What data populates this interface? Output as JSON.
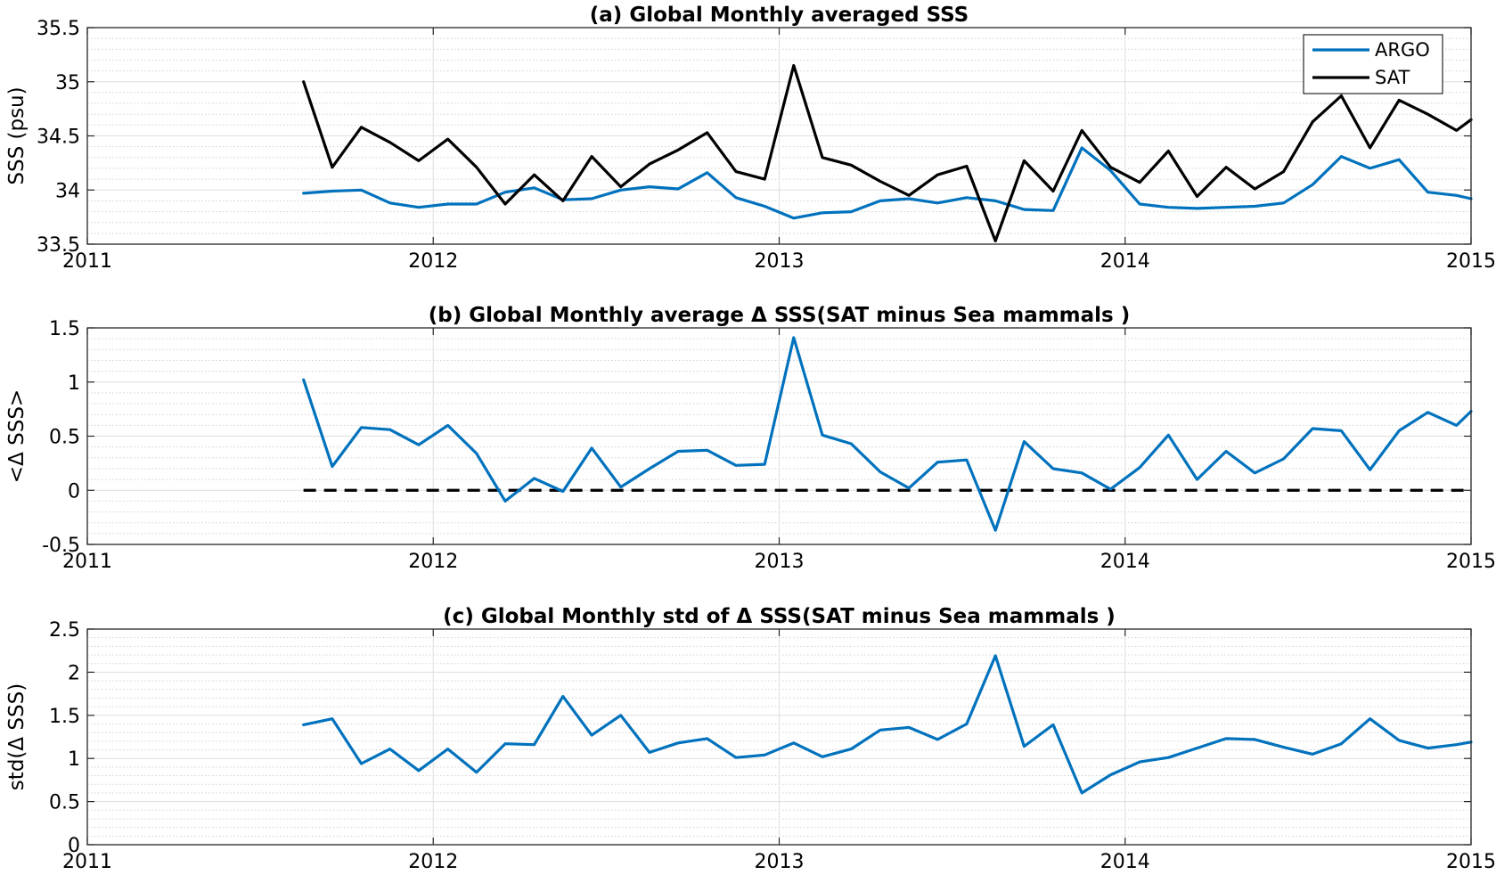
{
  "chart_data": [
    {
      "type": "line",
      "title": "(a) Global Monthly averaged SSS",
      "xlabel": "",
      "ylabel": "SSS (psu)",
      "xlim": [
        2011,
        2015
      ],
      "ylim": [
        33.5,
        35.5
      ],
      "xticks": [
        2011,
        2012,
        2013,
        2014,
        2015
      ],
      "xtick_labels": [
        "2011",
        "2012",
        "2013",
        "2014",
        "2015"
      ],
      "yticks": [
        33.5,
        34,
        34.5,
        35,
        35.5
      ],
      "ytick_labels": [
        "33.5",
        "34",
        "34.5",
        "35",
        "35.5"
      ],
      "minor_y_step": 0.1,
      "grid": true,
      "legend": "top-right",
      "x": [
        2011.625,
        2011.708,
        2011.792,
        2011.875,
        2011.958,
        2012.042,
        2012.125,
        2012.208,
        2012.292,
        2012.375,
        2012.458,
        2012.542,
        2012.625,
        2012.708,
        2012.792,
        2012.875,
        2012.958,
        2013.042,
        2013.125,
        2013.208,
        2013.292,
        2013.375,
        2013.458,
        2013.542,
        2013.625,
        2013.708,
        2013.792,
        2013.875,
        2013.958,
        2014.042,
        2014.125,
        2014.208,
        2014.292,
        2014.375,
        2014.458,
        2014.542,
        2014.625,
        2014.708,
        2014.792,
        2014.875,
        2014.958,
        2015.0
      ],
      "series": [
        {
          "name": "ARGO",
          "color": "#0072BD",
          "values": [
            33.97,
            33.99,
            34.0,
            33.88,
            33.84,
            33.87,
            33.87,
            33.98,
            34.02,
            33.91,
            33.92,
            34.0,
            34.03,
            34.01,
            34.16,
            33.93,
            33.85,
            33.74,
            33.79,
            33.8,
            33.9,
            33.92,
            33.88,
            33.93,
            33.9,
            33.82,
            33.81,
            34.39,
            34.18,
            33.87,
            33.84,
            33.83,
            33.84,
            33.85,
            33.88,
            34.05,
            34.31,
            34.2,
            34.28,
            33.98,
            33.95,
            33.92
          ]
        },
        {
          "name": "SAT",
          "color": "#000000",
          "values": [
            35.0,
            34.21,
            34.58,
            34.44,
            34.27,
            34.47,
            34.21,
            33.87,
            34.14,
            33.9,
            34.31,
            34.03,
            34.24,
            34.37,
            34.53,
            34.17,
            34.1,
            35.15,
            34.3,
            34.23,
            34.08,
            33.95,
            34.14,
            34.22,
            33.53,
            34.27,
            33.99,
            34.55,
            34.21,
            34.07,
            34.36,
            33.94,
            34.21,
            34.01,
            34.17,
            34.63,
            34.87,
            34.39,
            34.83,
            34.7,
            34.55,
            34.65
          ]
        }
      ]
    },
    {
      "type": "line",
      "title": "(b) Global Monthly average Δ SSS(SAT minus Sea mammals )",
      "xlabel": "",
      "ylabel": "<Δ SSS>",
      "xlim": [
        2011,
        2015
      ],
      "ylim": [
        -0.5,
        1.5
      ],
      "xticks": [
        2011,
        2012,
        2013,
        2014,
        2015
      ],
      "xtick_labels": [
        "2011",
        "2012",
        "2013",
        "2014",
        "2015"
      ],
      "yticks": [
        -0.5,
        0,
        0.5,
        1,
        1.5
      ],
      "ytick_labels": [
        "-0.5",
        "0",
        "0.5",
        "1",
        "1.5"
      ],
      "minor_y_step": 0.1,
      "grid": true,
      "reference_line": {
        "y": 0,
        "xrange": [
          2011.625,
          2015.0
        ],
        "style": "dashed",
        "color": "#000000"
      },
      "x": [
        2011.625,
        2011.708,
        2011.792,
        2011.875,
        2011.958,
        2012.042,
        2012.125,
        2012.208,
        2012.292,
        2012.375,
        2012.458,
        2012.542,
        2012.625,
        2012.708,
        2012.792,
        2012.875,
        2012.958,
        2013.042,
        2013.125,
        2013.208,
        2013.292,
        2013.375,
        2013.458,
        2013.542,
        2013.625,
        2013.708,
        2013.792,
        2013.875,
        2013.958,
        2014.042,
        2014.125,
        2014.208,
        2014.292,
        2014.375,
        2014.458,
        2014.542,
        2014.625,
        2014.708,
        2014.792,
        2014.875,
        2014.958,
        2015.0
      ],
      "series": [
        {
          "color": "#0072BD",
          "values": [
            1.02,
            0.22,
            0.58,
            0.56,
            0.42,
            0.6,
            0.34,
            -0.1,
            0.11,
            -0.01,
            0.39,
            0.03,
            0.2,
            0.36,
            0.37,
            0.23,
            0.24,
            1.41,
            0.51,
            0.43,
            0.17,
            0.02,
            0.26,
            0.28,
            -0.37,
            0.45,
            0.2,
            0.16,
            0.01,
            0.21,
            0.51,
            0.1,
            0.36,
            0.16,
            0.29,
            0.57,
            0.55,
            0.19,
            0.55,
            0.72,
            0.6,
            0.73
          ]
        }
      ]
    },
    {
      "type": "line",
      "title": "(c) Global Monthly std of Δ SSS(SAT minus Sea mammals )",
      "xlabel": "",
      "ylabel": "std(Δ SSS)",
      "xlim": [
        2011,
        2015
      ],
      "ylim": [
        0,
        2.5
      ],
      "xticks": [
        2011,
        2012,
        2013,
        2014,
        2015
      ],
      "xtick_labels": [
        "2011",
        "2012",
        "2013",
        "2014",
        "2015"
      ],
      "yticks": [
        0,
        0.5,
        1,
        1.5,
        2,
        2.5
      ],
      "ytick_labels": [
        "0",
        "0.5",
        "1",
        "1.5",
        "2",
        "2.5"
      ],
      "minor_y_step": 0.1,
      "grid": true,
      "x": [
        2011.625,
        2011.708,
        2011.792,
        2011.875,
        2011.958,
        2012.042,
        2012.125,
        2012.208,
        2012.292,
        2012.375,
        2012.458,
        2012.542,
        2012.625,
        2012.708,
        2012.792,
        2012.875,
        2012.958,
        2013.042,
        2013.125,
        2013.208,
        2013.292,
        2013.375,
        2013.458,
        2013.542,
        2013.625,
        2013.708,
        2013.792,
        2013.875,
        2013.958,
        2014.042,
        2014.125,
        2014.208,
        2014.292,
        2014.375,
        2014.458,
        2014.542,
        2014.625,
        2014.708,
        2014.792,
        2014.875,
        2014.958,
        2015.0
      ],
      "series": [
        {
          "color": "#0072BD",
          "values": [
            1.39,
            1.46,
            0.94,
            1.11,
            0.86,
            1.11,
            0.84,
            1.17,
            1.16,
            1.72,
            1.27,
            1.5,
            1.07,
            1.18,
            1.23,
            1.01,
            1.04,
            1.18,
            1.02,
            1.11,
            1.33,
            1.36,
            1.22,
            1.4,
            2.19,
            1.14,
            1.39,
            0.6,
            0.81,
            0.96,
            1.01,
            1.12,
            1.23,
            1.22,
            1.13,
            1.05,
            1.17,
            1.46,
            1.21,
            1.12,
            1.16,
            1.19
          ]
        }
      ]
    }
  ]
}
